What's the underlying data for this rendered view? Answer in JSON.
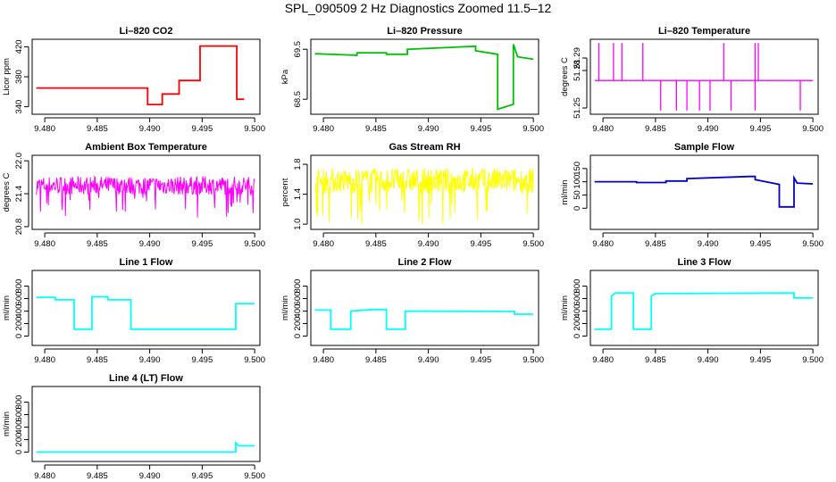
{
  "title": "SPL_090509  2 Hz Diagnostics Zoomed 11.5–12",
  "chart_data": [
    {
      "type": "line",
      "title": "Li–820 CO2",
      "ylabel": "Licor ppm",
      "color": "#ff0000",
      "xlim": [
        9.4788,
        9.5005
      ],
      "xticks": [
        "9.480",
        "9.485",
        "9.490",
        "9.495",
        "9.500"
      ],
      "ylim": [
        330,
        430
      ],
      "yticks": [
        "340",
        "380",
        "420"
      ],
      "segments": [
        [
          9.4792,
          365
        ],
        [
          9.4898,
          365
        ],
        [
          9.4898,
          343
        ],
        [
          9.4912,
          343
        ],
        [
          9.4912,
          357
        ],
        [
          9.4928,
          357
        ],
        [
          9.4928,
          375
        ],
        [
          9.4948,
          375
        ],
        [
          9.4948,
          421
        ],
        [
          9.4983,
          421
        ],
        [
          9.4983,
          350
        ],
        [
          9.499,
          350
        ]
      ]
    },
    {
      "type": "line",
      "title": "Li–820 Pressure",
      "ylabel": "kPa",
      "color": "#00c000",
      "xlim": [
        9.4788,
        9.5005
      ],
      "xticks": [
        "9.480",
        "9.485",
        "9.490",
        "9.495",
        "9.500"
      ],
      "ylim": [
        68.2,
        69.7
      ],
      "yticks": [
        "68.5",
        "69.5"
      ],
      "segments": [
        [
          9.4792,
          69.41
        ],
        [
          9.4832,
          69.38
        ],
        [
          9.4832,
          69.43
        ],
        [
          9.486,
          69.43
        ],
        [
          9.486,
          69.4
        ],
        [
          9.488,
          69.4
        ],
        [
          9.488,
          69.5
        ],
        [
          9.4945,
          69.56
        ],
        [
          9.4945,
          69.47
        ],
        [
          9.4966,
          69.4
        ],
        [
          9.4966,
          68.3
        ],
        [
          9.4981,
          68.4
        ],
        [
          9.4981,
          69.6
        ],
        [
          9.4985,
          69.35
        ],
        [
          9.5,
          69.3
        ]
      ]
    },
    {
      "type": "line",
      "title": "Li–820 Temperature",
      "ylabel": "degrees C",
      "color": "#ff00ff",
      "xlim": [
        9.4788,
        9.5005
      ],
      "xticks": [
        "9.480",
        "9.485",
        "9.490",
        "9.495",
        "9.500"
      ],
      "ylim": [
        51.245,
        51.305
      ],
      "yticks": [
        "51.25",
        "51.28",
        "51.29"
      ],
      "baseline": 51.272,
      "spikes_up": [
        9.4796,
        9.481,
        9.4818,
        9.4838,
        9.4915,
        9.4945,
        9.4948
      ],
      "spikes_down": [
        9.4855,
        9.487,
        9.488,
        9.4892,
        9.4902,
        9.4922,
        9.4945,
        9.4988
      ],
      "spike_up_to": 51.302,
      "spike_down_to": 51.248
    },
    {
      "type": "line",
      "title": "Ambient Box Temperature",
      "ylabel": "degrees C",
      "color": "#ff00ff",
      "xlim": [
        9.4788,
        9.5005
      ],
      "xticks": [
        "9.480",
        "9.485",
        "9.490",
        "9.495",
        "9.500"
      ],
      "ylim": [
        20.75,
        22.1
      ],
      "yticks": [
        "20.8",
        "21.4",
        "22.0"
      ],
      "noise": {
        "center": 21.55,
        "spread": 0.28
      }
    },
    {
      "type": "line",
      "title": "Gas Stream RH",
      "ylabel": "percent",
      "color": "#ffff00",
      "xlim": [
        9.4788,
        9.5005
      ],
      "xticks": [
        "9.480",
        "9.485",
        "9.490",
        "9.495",
        "9.500"
      ],
      "ylim": [
        0.93,
        1.92
      ],
      "yticks": [
        "1.0",
        "1.4",
        "1.8"
      ],
      "noise": {
        "center": 1.58,
        "spread": 0.28
      }
    },
    {
      "type": "line",
      "title": "Sample Flow",
      "ylabel": "ml/min",
      "color": "#0000cc",
      "xlim": [
        9.4788,
        9.5005
      ],
      "xticks": [
        "9.480",
        "9.485",
        "9.490",
        "9.495",
        "9.500"
      ],
      "ylim": [
        -80,
        200
      ],
      "yticks": [
        "0",
        "50",
        "100",
        "150"
      ],
      "segments": [
        [
          9.4792,
          100
        ],
        [
          9.4832,
          100
        ],
        [
          9.4832,
          97
        ],
        [
          9.486,
          97
        ],
        [
          9.486,
          103
        ],
        [
          9.488,
          103
        ],
        [
          9.488,
          112
        ],
        [
          9.494,
          120
        ],
        [
          9.4945,
          120
        ],
        [
          9.4945,
          108
        ],
        [
          9.4968,
          90
        ],
        [
          9.4968,
          5
        ],
        [
          9.4982,
          5
        ],
        [
          9.4982,
          115
        ],
        [
          9.4985,
          95
        ],
        [
          9.5,
          92
        ]
      ]
    },
    {
      "type": "line",
      "title": "Line 1 Flow",
      "ylabel": "ml/min",
      "color": "#00ffff",
      "xlim": [
        9.4788,
        9.5005
      ],
      "xticks": [
        "9.480",
        "9.485",
        "9.490",
        "9.495",
        "9.500"
      ],
      "ylim": [
        -150,
        1050
      ],
      "yticks": [
        "0",
        "200",
        "400",
        "600",
        "800"
      ],
      "segments": [
        [
          9.4792,
          620
        ],
        [
          9.481,
          620
        ],
        [
          9.481,
          580
        ],
        [
          9.4828,
          580
        ],
        [
          9.4828,
          110
        ],
        [
          9.4845,
          110
        ],
        [
          9.4845,
          630
        ],
        [
          9.486,
          630
        ],
        [
          9.486,
          580
        ],
        [
          9.4882,
          580
        ],
        [
          9.4882,
          110
        ],
        [
          9.4982,
          110
        ],
        [
          9.4982,
          520
        ],
        [
          9.5,
          520
        ]
      ]
    },
    {
      "type": "line",
      "title": "Line 2 Flow",
      "ylabel": "ml/min",
      "color": "#00ffff",
      "xlim": [
        9.4788,
        9.5005
      ],
      "xticks": [
        "9.480",
        "9.485",
        "9.490",
        "9.495",
        "9.500"
      ],
      "ylim": [
        -150,
        1050
      ],
      "yticks": [
        "0",
        "200",
        "400",
        "600",
        "800"
      ],
      "segments": [
        [
          9.4792,
          415
        ],
        [
          9.4807,
          415
        ],
        [
          9.4807,
          110
        ],
        [
          9.4826,
          110
        ],
        [
          9.4826,
          400
        ],
        [
          9.4847,
          425
        ],
        [
          9.486,
          425
        ],
        [
          9.486,
          110
        ],
        [
          9.4878,
          110
        ],
        [
          9.4878,
          400
        ],
        [
          9.4982,
          395
        ],
        [
          9.4982,
          350
        ],
        [
          9.5,
          350
        ]
      ]
    },
    {
      "type": "line",
      "title": "Line 3 Flow",
      "ylabel": "ml/min",
      "color": "#00ffff",
      "xlim": [
        9.4788,
        9.5005
      ],
      "xticks": [
        "9.480",
        "9.485",
        "9.490",
        "9.495",
        "9.500"
      ],
      "ylim": [
        -150,
        1050
      ],
      "yticks": [
        "0",
        "200",
        "400",
        "600",
        "800"
      ],
      "segments": [
        [
          9.4792,
          110
        ],
        [
          9.4808,
          110
        ],
        [
          9.4808,
          640
        ],
        [
          9.4812,
          690
        ],
        [
          9.4829,
          690
        ],
        [
          9.4829,
          110
        ],
        [
          9.4846,
          110
        ],
        [
          9.4846,
          640
        ],
        [
          9.485,
          680
        ],
        [
          9.4982,
          690
        ],
        [
          9.4982,
          610
        ],
        [
          9.5,
          610
        ]
      ]
    },
    {
      "type": "line",
      "title": "Line 4 (LT) Flow",
      "ylabel": "ml/min",
      "color": "#00ffff",
      "xlim": [
        9.4788,
        9.5005
      ],
      "xticks": [
        "9.480",
        "9.485",
        "9.490",
        "9.495",
        "9.500"
      ],
      "ylim": [
        -150,
        1050
      ],
      "yticks": [
        "0",
        "200",
        "400",
        "600",
        "800"
      ],
      "segments": [
        [
          9.4792,
          2
        ],
        [
          9.4982,
          2
        ],
        [
          9.4982,
          150
        ],
        [
          9.4985,
          100
        ],
        [
          9.5,
          100
        ]
      ]
    }
  ]
}
